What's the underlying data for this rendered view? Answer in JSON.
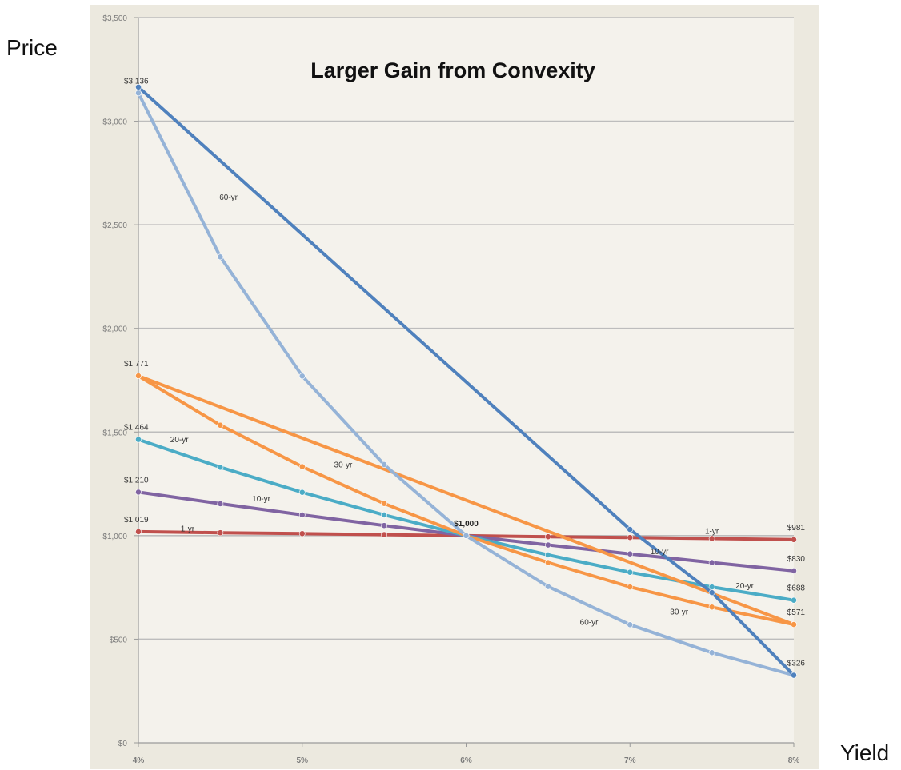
{
  "outer_labels": {
    "price": "Price",
    "yield": "Yield"
  },
  "chart_data": {
    "type": "line",
    "title": "Larger Gain from Convexity",
    "xlabel": "Yield",
    "ylabel": "Price",
    "x": [
      4,
      4.5,
      5,
      5.5,
      6,
      6.5,
      7,
      7.5,
      8
    ],
    "x_tick_labels": [
      "4%",
      "5%",
      "6%",
      "7%",
      "8%"
    ],
    "x_tick_values": [
      4,
      5,
      6,
      7,
      8
    ],
    "xlim": [
      4,
      8
    ],
    "y_tick_labels": [
      "$0",
      "$500",
      "$1,000",
      "$1,500",
      "$2,000",
      "$2,500",
      "$3,000",
      "$3,500"
    ],
    "y_tick_values": [
      0,
      500,
      1000,
      1500,
      2000,
      2500,
      3000,
      3500
    ],
    "ylim": [
      0,
      3500
    ],
    "grid": "horizontal",
    "colors": {
      "plot_background": "#f4f2ec",
      "frame_background": "#ece9df",
      "gridline": "#bdbdbd"
    },
    "series": [
      {
        "name": "1-yr",
        "color": "#c0504d",
        "values": [
          1019,
          1014,
          1010,
          1005,
          1000,
          995,
          991,
          986,
          981
        ]
      },
      {
        "name": "10-yr",
        "color": "#8064a2",
        "values": [
          1210,
          1154,
          1100,
          1049,
          1000,
          955,
          912,
          870,
          830
        ]
      },
      {
        "name": "20-yr",
        "color": "#4bacc6",
        "values": [
          1464,
          1330,
          1209,
          1100,
          1000,
          907,
          823,
          752,
          688
        ]
      },
      {
        "name": "30-yr",
        "color": "#f79646",
        "values": [
          1771,
          1533,
          1333,
          1155,
          1000,
          870,
          752,
          655,
          571
        ]
      },
      {
        "name": "",
        "color": "#f79646",
        "values": [
          1771,
          null,
          null,
          null,
          null,
          null,
          null,
          null,
          571
        ]
      },
      {
        "name": "60-yr",
        "color": "#95b3d7",
        "values": [
          3136,
          2345,
          1770,
          1343,
          1000,
          754,
          570,
          435,
          326
        ]
      },
      {
        "name": "",
        "color": "#4f81bd",
        "values": [
          3165,
          null,
          null,
          null,
          null,
          null,
          1030,
          725,
          326
        ]
      }
    ],
    "data_labels": [
      {
        "text": "$3,136",
        "x": 4,
        "y": 3136
      },
      {
        "text": "$1,771",
        "x": 4,
        "y": 1771
      },
      {
        "text": "$1,464",
        "x": 4,
        "y": 1464
      },
      {
        "text": "$1,210",
        "x": 4,
        "y": 1210
      },
      {
        "text": "$1,019",
        "x": 4,
        "y": 1019
      },
      {
        "text": "$1,000",
        "x": 6,
        "y": 1000
      },
      {
        "text": "$981",
        "x": 8,
        "y": 981
      },
      {
        "text": "$830",
        "x": 8,
        "y": 830
      },
      {
        "text": "$688",
        "x": 8,
        "y": 688
      },
      {
        "text": "$571",
        "x": 8,
        "y": 571
      },
      {
        "text": "$326",
        "x": 8,
        "y": 326
      }
    ],
    "series_labels": [
      {
        "text": "60-yr",
        "x": 4.55,
        "y": 2620
      },
      {
        "text": "20-yr",
        "x": 4.25,
        "y": 1450
      },
      {
        "text": "30-yr",
        "x": 5.25,
        "y": 1330
      },
      {
        "text": "10-yr",
        "x": 4.75,
        "y": 1165
      },
      {
        "text": "1-yr",
        "x": 4.3,
        "y": 1020
      },
      {
        "text": "1-yr",
        "x": 7.5,
        "y": 1010
      },
      {
        "text": "10-yr",
        "x": 7.18,
        "y": 910
      },
      {
        "text": "20-yr",
        "x": 7.7,
        "y": 745
      },
      {
        "text": "30-yr",
        "x": 7.3,
        "y": 620
      },
      {
        "text": "60-yr",
        "x": 6.75,
        "y": 570
      }
    ]
  }
}
